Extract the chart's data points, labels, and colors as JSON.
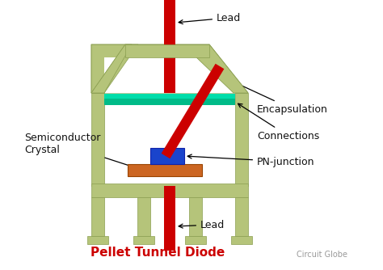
{
  "title": "Pellet Tunnel Diode",
  "title_color": "#cc0000",
  "subtitle": "Circuit Globe",
  "subtitle_color": "#999999",
  "bg_color": "#ffffff",
  "olive": "#b5c47a",
  "olive_edge": "#8a9e50",
  "red": "#cc0000",
  "green1": "#00bb88",
  "green2": "#00ddaa",
  "blue": "#1a44cc",
  "orange": "#cc6622",
  "labels": {
    "lead_top": "Lead",
    "lead_bottom": "Lead",
    "encapsulation": "Encapsulation",
    "connections": "Connections",
    "pn_junction": "PN-junction",
    "semiconductor": "Semiconductor\nCrystal"
  },
  "font_size": 9,
  "title_font_size": 11
}
